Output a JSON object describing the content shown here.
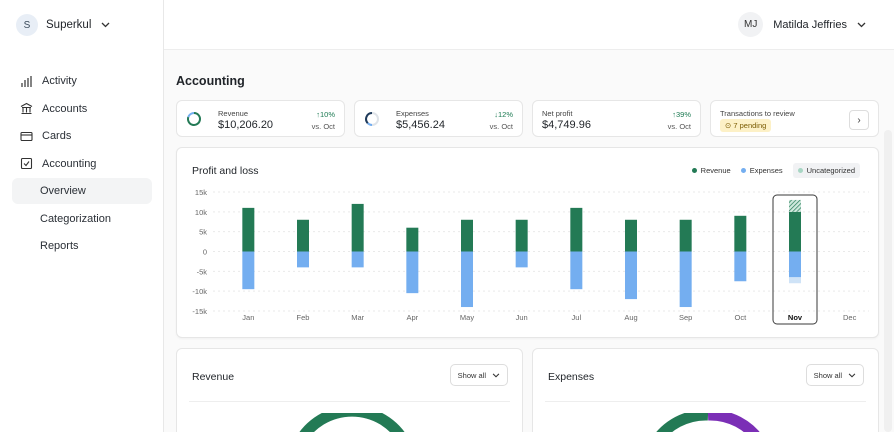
{
  "org": {
    "initial": "S",
    "name": "Superkul"
  },
  "user": {
    "initials": "MJ",
    "name": "Matilda Jeffries"
  },
  "sidebar": {
    "items": [
      {
        "label": "Activity",
        "icon": "bar-chart-icon"
      },
      {
        "label": "Accounts",
        "icon": "bank-icon"
      },
      {
        "label": "Cards",
        "icon": "card-icon"
      },
      {
        "label": "Accounting",
        "icon": "checklist-icon"
      },
      {
        "label": "Overview",
        "sub": true,
        "active": true
      },
      {
        "label": "Categorization",
        "sub": true
      },
      {
        "label": "Reports",
        "sub": true
      }
    ]
  },
  "page": {
    "title": "Accounting"
  },
  "kpis": {
    "revenue": {
      "label": "Revenue",
      "value": "$10,206.20",
      "delta": "↑10%",
      "sub": "vs. Oct"
    },
    "expenses": {
      "label": "Expenses",
      "value": "$5,456.24",
      "delta": "↓12%",
      "sub": "vs. Oct"
    },
    "net": {
      "label": "Net profit",
      "value": "$4,749.96",
      "delta": "↑39%",
      "sub": "vs. Oct"
    },
    "review": {
      "label": "Transactions to review",
      "pending": "⊙ 7 pending",
      "arrow": "›"
    }
  },
  "pl": {
    "title": "Profit and loss",
    "legend": {
      "revenue": "Revenue",
      "expenses": "Expenses",
      "uncategorized": "Uncategorized"
    }
  },
  "chart_data": {
    "type": "bar",
    "title": "Profit and loss",
    "categories": [
      "Jan",
      "Feb",
      "Mar",
      "Apr",
      "May",
      "Jun",
      "Jul",
      "Aug",
      "Sep",
      "Oct",
      "Nov",
      "Dec"
    ],
    "y_ticks": [
      "15k",
      "10k",
      "5k",
      "0",
      "-5k",
      "-10k",
      "-15k"
    ],
    "ylim": [
      -15000,
      15000
    ],
    "series": [
      {
        "name": "Revenue",
        "values": [
          11000,
          8000,
          12000,
          6000,
          8000,
          8000,
          11000,
          8000,
          8000,
          9000,
          10000,
          0
        ]
      },
      {
        "name": "Expenses",
        "values": [
          -9500,
          -4000,
          -4000,
          -10500,
          -14000,
          -4000,
          -9500,
          -12000,
          -14000,
          -7500,
          -6500,
          0
        ]
      },
      {
        "name": "Uncategorized",
        "values": [
          0,
          0,
          0,
          0,
          0,
          0,
          0,
          0,
          0,
          0,
          3000,
          0
        ],
        "negative": [
          0,
          0,
          0,
          0,
          0,
          0,
          0,
          0,
          0,
          0,
          -1500,
          0
        ]
      }
    ],
    "highlight": "Nov",
    "colors": {
      "revenue": "#237a55",
      "expenses": "#74aef0",
      "uncategorized": "#a8d6c4",
      "grid": "#e9e9e9"
    }
  },
  "revenue_panel": {
    "title": "Revenue",
    "button": "Show all"
  },
  "expenses_panel": {
    "title": "Expenses",
    "button": "Show all"
  }
}
